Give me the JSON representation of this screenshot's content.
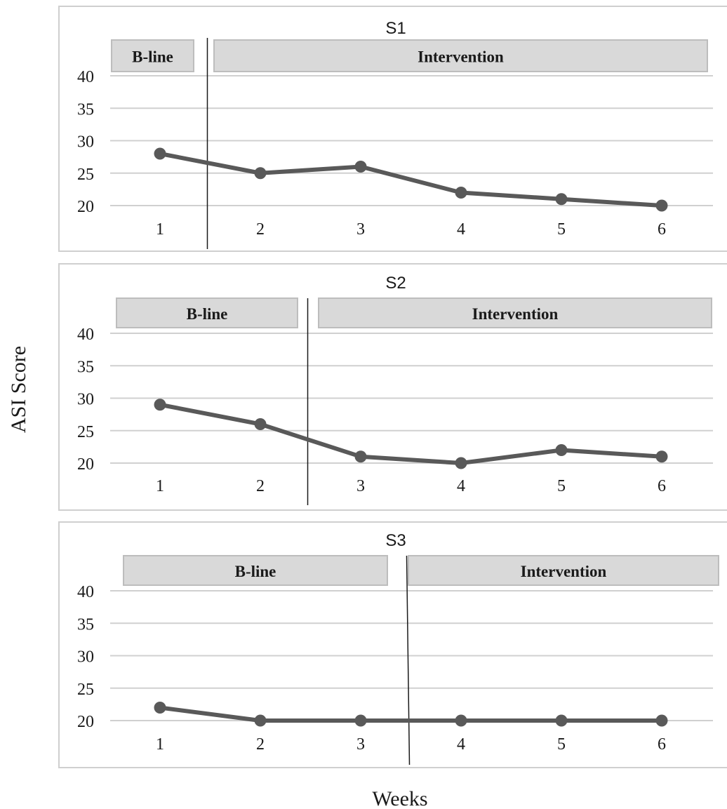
{
  "figure": {
    "ylabel": "ASI Score",
    "xlabel": "Weeks"
  },
  "chart_data": [
    {
      "type": "line",
      "title": "S1",
      "categories": [
        "1",
        "2",
        "3",
        "4",
        "5",
        "6"
      ],
      "values": [
        28,
        25,
        26,
        22,
        21,
        20
      ],
      "yticks": [
        "20",
        "25",
        "30",
        "35",
        "40"
      ],
      "ylim": [
        20,
        40
      ],
      "phase_labels": [
        "B-line",
        "Intervention"
      ],
      "phase_change_after_category": 1,
      "grid": true,
      "line_color": "#595959"
    },
    {
      "type": "line",
      "title": "S2",
      "categories": [
        "1",
        "2",
        "3",
        "4",
        "5",
        "6"
      ],
      "values": [
        29,
        26,
        21,
        20,
        22,
        21
      ],
      "yticks": [
        "20",
        "25",
        "30",
        "35",
        "40"
      ],
      "ylim": [
        20,
        40
      ],
      "phase_labels": [
        "B-line",
        "Intervention"
      ],
      "phase_change_after_category": 2,
      "grid": true,
      "line_color": "#595959"
    },
    {
      "type": "line",
      "title": "S3",
      "categories": [
        "1",
        "2",
        "3",
        "4",
        "5",
        "6"
      ],
      "values": [
        22,
        20,
        20,
        20,
        20,
        20
      ],
      "yticks": [
        "20",
        "25",
        "30",
        "35",
        "40"
      ],
      "ylim": [
        20,
        40
      ],
      "phase_labels": [
        "B-line",
        "Intervention"
      ],
      "phase_change_after_category": 3,
      "grid": true,
      "line_color": "#595959"
    }
  ]
}
